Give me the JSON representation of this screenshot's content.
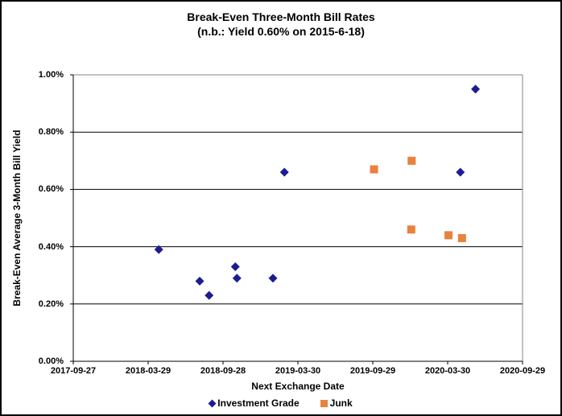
{
  "chart_data": {
    "type": "scatter",
    "title": "Break-Even Three-Month Bill Rates",
    "subtitle": "(n.b.: Yield 0.60% on 2015-6-18)",
    "xlabel": "Next Exchange Date",
    "ylabel": "Break-Even Average 3-Month  Bill Yield",
    "x_tick_labels": [
      "2017-09-27",
      "2018-03-29",
      "2018-09-28",
      "2019-03-30",
      "2019-09-29",
      "2020-03-30",
      "2020-09-29"
    ],
    "y_tick_labels": [
      "0.00%",
      "0.20%",
      "0.40%",
      "0.60%",
      "0.80%",
      "1.00%"
    ],
    "y_tick_values": [
      0.0,
      0.2,
      0.4,
      0.6,
      0.8,
      1.0
    ],
    "xlim": [
      "2017-09-27",
      "2020-09-29"
    ],
    "ylim": [
      0.0,
      1.0
    ],
    "y_unit": "%",
    "grid": "horizontal",
    "legend_position": "bottom",
    "series": [
      {
        "name": "Investment Grade",
        "marker": "diamond",
        "color": "#1c1c92",
        "points": [
          {
            "date": "2018-04-24",
            "yield_pct": 0.39
          },
          {
            "date": "2018-08-02",
            "yield_pct": 0.28
          },
          {
            "date": "2018-08-25",
            "yield_pct": 0.23
          },
          {
            "date": "2018-10-28",
            "yield_pct": 0.33
          },
          {
            "date": "2018-11-01",
            "yield_pct": 0.29
          },
          {
            "date": "2019-01-28",
            "yield_pct": 0.29
          },
          {
            "date": "2019-02-25",
            "yield_pct": 0.66
          },
          {
            "date": "2020-04-30",
            "yield_pct": 0.66
          },
          {
            "date": "2020-06-06",
            "yield_pct": 0.95
          }
        ]
      },
      {
        "name": "Junk",
        "marker": "square",
        "color": "#e8823c",
        "points": [
          {
            "date": "2019-10-02",
            "yield_pct": 0.67
          },
          {
            "date": "2020-01-01",
            "yield_pct": 0.46
          },
          {
            "date": "2020-01-02",
            "yield_pct": 0.7
          },
          {
            "date": "2020-04-01",
            "yield_pct": 0.44
          },
          {
            "date": "2020-05-04",
            "yield_pct": 0.43
          }
        ]
      }
    ],
    "style_colors": {
      "axis": "#000000",
      "gridline": "#000000",
      "plot_border": "#848484",
      "background": "#ffffff"
    }
  }
}
